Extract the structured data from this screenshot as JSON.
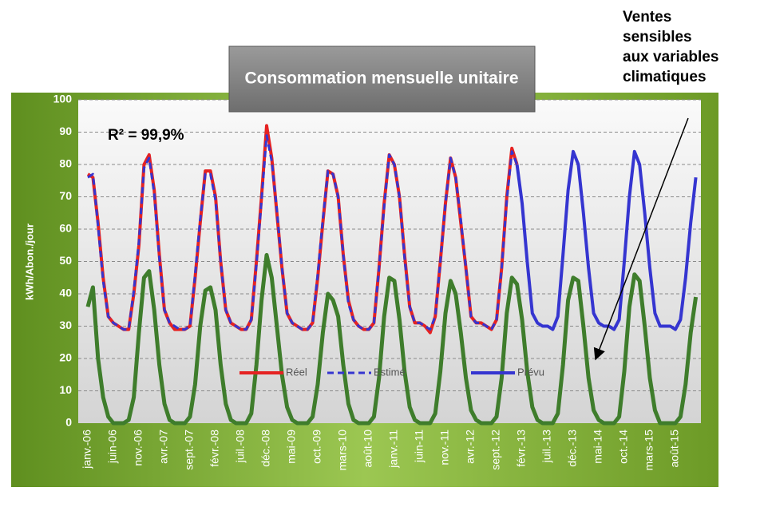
{
  "chart_data": {
    "type": "line",
    "title": "Consommation mensuelle unitaire",
    "ylabel": "kWh/Abon./jour",
    "annotations": [
      "R² = 99,9%"
    ],
    "callout": [
      "Ventes",
      "sensibles",
      "aux variables",
      "climatiques"
    ],
    "ylim": [
      0,
      100
    ],
    "yticks": [
      0,
      10,
      20,
      30,
      40,
      50,
      60,
      70,
      80,
      90,
      100
    ],
    "grid": true,
    "legend": "bottom",
    "categories": [
      "janv.-06",
      null,
      null,
      null,
      null,
      "juin-06",
      null,
      null,
      null,
      null,
      "nov.-06",
      null,
      null,
      null,
      null,
      "avr.-07",
      null,
      null,
      null,
      null,
      "sept.-07",
      null,
      null,
      null,
      null,
      "févr.-08",
      null,
      null,
      null,
      null,
      "juil.-08",
      null,
      null,
      null,
      null,
      "déc.-08",
      null,
      null,
      null,
      null,
      "mai-09",
      null,
      null,
      null,
      null,
      "oct.-09",
      null,
      null,
      null,
      null,
      "mars-10",
      null,
      null,
      null,
      null,
      "août-10",
      null,
      null,
      null,
      null,
      "janv.-11",
      null,
      null,
      null,
      null,
      "juin-11",
      null,
      null,
      null,
      null,
      "nov.-11",
      null,
      null,
      null,
      null,
      "avr.-12",
      null,
      null,
      null,
      null,
      "sept.-12",
      null,
      null,
      null,
      null,
      "févr.-13",
      null,
      null,
      null,
      null,
      "juil.-13",
      null,
      null,
      null,
      null,
      "déc.-13",
      null,
      null,
      null,
      null,
      "mai-14",
      null,
      null,
      null,
      null,
      "oct.-14",
      null,
      null,
      null,
      null,
      "mars-15",
      null,
      null,
      null,
      null,
      "août-15",
      null,
      null,
      null,
      null
    ],
    "series": [
      {
        "name": "Réel",
        "color": "#e52222",
        "style": "solid",
        "legend": true,
        "values": [
          77,
          76,
          62,
          45,
          33,
          31,
          30,
          29,
          29,
          40,
          55,
          80,
          83,
          72,
          52,
          35,
          31,
          29,
          29,
          29,
          30,
          45,
          62,
          78,
          78,
          70,
          50,
          35,
          31,
          30,
          29,
          29,
          32,
          50,
          70,
          92,
          82,
          65,
          48,
          34,
          31,
          30,
          29,
          29,
          31,
          45,
          62,
          78,
          77,
          70,
          52,
          38,
          32,
          30,
          29,
          29,
          31,
          48,
          68,
          83,
          80,
          70,
          52,
          36,
          31,
          31,
          30,
          28,
          33,
          50,
          68,
          82,
          76,
          62,
          48,
          33,
          31,
          31,
          30,
          29,
          32,
          48,
          70,
          85,
          80,
          null,
          null,
          null,
          null,
          null,
          null,
          null,
          null,
          null,
          null,
          null,
          null,
          null,
          null,
          null,
          null,
          null,
          null,
          null,
          null,
          null,
          null,
          null,
          null,
          null,
          null,
          null,
          null,
          null,
          null,
          null,
          null,
          null,
          null,
          null
        ]
      },
      {
        "name": "Estimé",
        "color": "#3535d0",
        "style": "dashed",
        "legend": true,
        "values": [
          76,
          77,
          61,
          44,
          33,
          31,
          30,
          29,
          29,
          41,
          56,
          79,
          82,
          71,
          51,
          35,
          31,
          30,
          29,
          29,
          30,
          46,
          63,
          77,
          77,
          69,
          50,
          35,
          31,
          30,
          29,
          29,
          32,
          49,
          69,
          89,
          81,
          66,
          48,
          34,
          31,
          30,
          29,
          29,
          31,
          46,
          63,
          78,
          77,
          70,
          52,
          37,
          32,
          30,
          29,
          29,
          31,
          48,
          67,
          83,
          80,
          70,
          51,
          36,
          31,
          31,
          30,
          29,
          33,
          50,
          68,
          82,
          76,
          63,
          48,
          33,
          31,
          31,
          30,
          29,
          32,
          48,
          69,
          84,
          80,
          null,
          null,
          null,
          null,
          null,
          null,
          null,
          null,
          null,
          null,
          null,
          null,
          null,
          null,
          null,
          null,
          null,
          null,
          null,
          null,
          null,
          null,
          null,
          null,
          null,
          null,
          null,
          null,
          null,
          null,
          null,
          null,
          null,
          null,
          null
        ]
      },
      {
        "name": "Prévu",
        "color": "#3535d0",
        "style": "solid",
        "legend": true,
        "values": [
          null,
          null,
          null,
          null,
          null,
          null,
          null,
          null,
          null,
          null,
          null,
          null,
          null,
          null,
          null,
          null,
          null,
          null,
          null,
          null,
          null,
          null,
          null,
          null,
          null,
          null,
          null,
          null,
          null,
          null,
          null,
          null,
          null,
          null,
          null,
          null,
          null,
          null,
          null,
          null,
          null,
          null,
          null,
          null,
          null,
          null,
          null,
          null,
          null,
          null,
          null,
          null,
          null,
          null,
          null,
          null,
          null,
          null,
          null,
          null,
          null,
          null,
          null,
          null,
          null,
          null,
          null,
          null,
          null,
          null,
          null,
          null,
          null,
          null,
          null,
          null,
          null,
          null,
          null,
          null,
          null,
          null,
          null,
          null,
          80,
          68,
          50,
          34,
          31,
          30,
          30,
          29,
          33,
          52,
          72,
          84,
          80,
          65,
          48,
          34,
          31,
          30,
          30,
          29,
          32,
          50,
          70,
          84,
          80,
          65,
          48,
          34,
          30,
          30,
          30,
          29,
          32,
          45,
          62,
          76
        ]
      },
      {
        "color": "#3f7d2c",
        "style": "solid",
        "legend": false,
        "values": [
          36,
          42,
          20,
          8,
          2,
          0,
          0,
          0,
          1,
          8,
          28,
          45,
          47,
          35,
          18,
          6,
          1,
          0,
          0,
          0,
          2,
          12,
          30,
          41,
          42,
          35,
          18,
          6,
          1,
          0,
          0,
          0,
          3,
          18,
          38,
          52,
          45,
          30,
          15,
          5,
          1,
          0,
          0,
          0,
          2,
          12,
          28,
          40,
          38,
          33,
          18,
          6,
          1,
          0,
          0,
          0,
          2,
          14,
          33,
          45,
          44,
          32,
          16,
          5,
          1,
          0,
          0,
          0,
          3,
          16,
          34,
          44,
          40,
          28,
          14,
          4,
          1,
          0,
          0,
          0,
          2,
          14,
          34,
          45,
          43,
          32,
          16,
          5,
          1,
          0,
          0,
          0,
          3,
          18,
          38,
          45,
          44,
          30,
          14,
          4,
          1,
          0,
          0,
          0,
          2,
          16,
          36,
          46,
          44,
          30,
          14,
          4,
          0,
          0,
          0,
          0,
          2,
          12,
          28,
          39
        ]
      }
    ]
  }
}
